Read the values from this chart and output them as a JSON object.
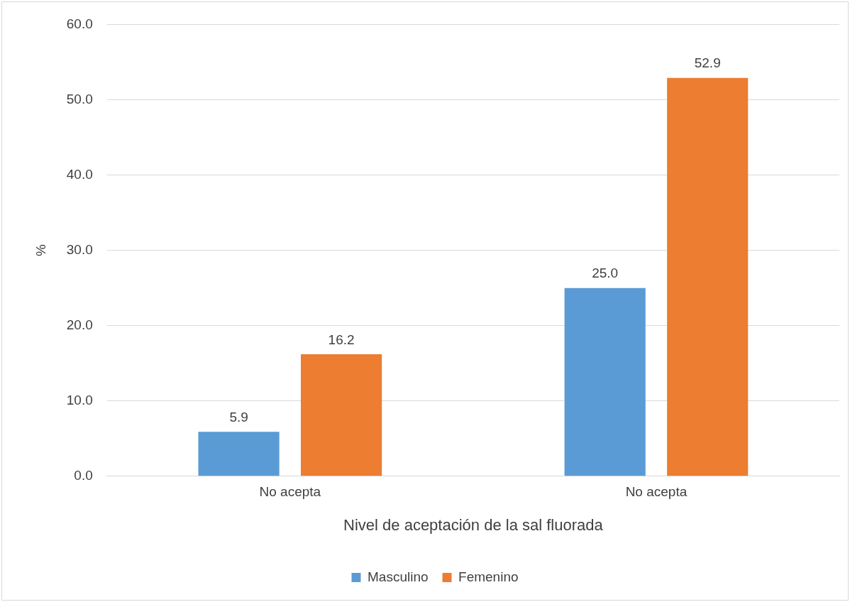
{
  "chart_data": {
    "type": "bar",
    "xlabel": "Nivel de aceptación de la sal fluorada",
    "ylabel": "%",
    "categories": [
      "No acepta",
      "No acepta"
    ],
    "series": [
      {
        "name": "Masculino",
        "color": "#5b9bd5",
        "values": [
          5.9,
          25.0
        ],
        "value_labels": [
          "5.9",
          "25.0"
        ]
      },
      {
        "name": "Femenino",
        "color": "#ed7d31",
        "values": [
          16.2,
          52.9
        ],
        "value_labels": [
          "16.2",
          "52.9"
        ]
      }
    ],
    "ylim": [
      0,
      60
    ],
    "yticks": [
      {
        "value": 0,
        "label": "0.0"
      },
      {
        "value": 10,
        "label": "10.0"
      },
      {
        "value": 20,
        "label": "20.0"
      },
      {
        "value": 30,
        "label": "30.0"
      },
      {
        "value": 40,
        "label": "40.0"
      },
      {
        "value": 50,
        "label": "50.0"
      },
      {
        "value": 60,
        "label": "60.0"
      }
    ],
    "grid": "y",
    "legend": "bottom"
  }
}
